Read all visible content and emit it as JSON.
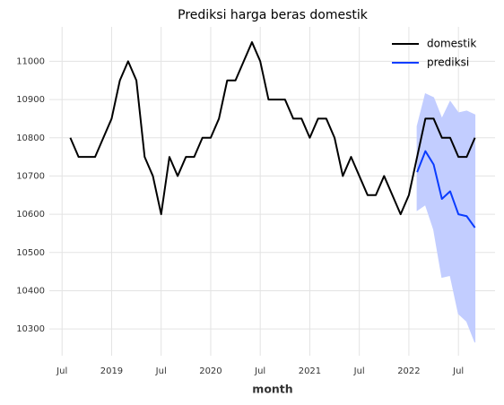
{
  "chart_data": {
    "type": "line",
    "title": "Prediksi harga beras domestik",
    "xlabel": "month",
    "x": [
      "2018-08",
      "2018-09",
      "2018-10",
      "2018-11",
      "2018-12",
      "2019-01",
      "2019-02",
      "2019-03",
      "2019-04",
      "2019-05",
      "2019-06",
      "2019-07",
      "2019-08",
      "2019-09",
      "2019-10",
      "2019-11",
      "2019-12",
      "2020-01",
      "2020-02",
      "2020-03",
      "2020-04",
      "2020-05",
      "2020-06",
      "2020-07",
      "2020-08",
      "2020-09",
      "2020-10",
      "2020-11",
      "2020-12",
      "2021-01",
      "2021-02",
      "2021-03",
      "2021-04",
      "2021-05",
      "2021-06",
      "2021-07",
      "2021-08",
      "2021-09",
      "2021-10",
      "2021-11",
      "2021-12",
      "2022-01",
      "2022-02",
      "2022-03",
      "2022-04",
      "2022-05",
      "2022-06",
      "2022-07",
      "2022-08",
      "2022-09"
    ],
    "series": [
      {
        "name": "domestik",
        "color": "#000000",
        "values": [
          10800,
          10750,
          10750,
          10750,
          10800,
          10850,
          10950,
          11000,
          10950,
          10750,
          10700,
          10600,
          10750,
          10700,
          10750,
          10750,
          10800,
          10800,
          10850,
          10950,
          10950,
          11000,
          11050,
          11000,
          10900,
          10900,
          10900,
          10850,
          10850,
          10800,
          10850,
          10850,
          10800,
          10700,
          10750,
          10700,
          10650,
          10650,
          10700,
          10650,
          10600,
          10650,
          10750,
          10850,
          10850,
          10800,
          10800,
          10750,
          10750,
          10800
        ]
      },
      {
        "name": "prediksi",
        "color": "#0a3cff",
        "band_color": "#c2cdff",
        "values": [
          null,
          null,
          null,
          null,
          null,
          null,
          null,
          null,
          null,
          null,
          null,
          null,
          null,
          null,
          null,
          null,
          null,
          null,
          null,
          null,
          null,
          null,
          null,
          null,
          null,
          null,
          null,
          null,
          null,
          null,
          null,
          null,
          null,
          null,
          null,
          null,
          null,
          null,
          null,
          null,
          null,
          null,
          10710,
          10765,
          10730,
          10640,
          10660,
          10600,
          10595,
          10565
        ],
        "lower": [
          null,
          null,
          null,
          null,
          null,
          null,
          null,
          null,
          null,
          null,
          null,
          null,
          null,
          null,
          null,
          null,
          null,
          null,
          null,
          null,
          null,
          null,
          null,
          null,
          null,
          null,
          null,
          null,
          null,
          null,
          null,
          null,
          null,
          null,
          null,
          null,
          null,
          null,
          null,
          null,
          null,
          null,
          10610,
          10625,
          10560,
          10435,
          10440,
          10340,
          10320,
          10265
        ],
        "upper": [
          null,
          null,
          null,
          null,
          null,
          null,
          null,
          null,
          null,
          null,
          null,
          null,
          null,
          null,
          null,
          null,
          null,
          null,
          null,
          null,
          null,
          null,
          null,
          null,
          null,
          null,
          null,
          null,
          null,
          null,
          null,
          null,
          null,
          null,
          null,
          null,
          null,
          null,
          null,
          null,
          null,
          null,
          10830,
          10915,
          10905,
          10850,
          10895,
          10865,
          10870,
          10860
        ]
      }
    ],
    "xlim": [
      "2018-06",
      "2022-11"
    ],
    "xticks": [
      {
        "value": "2018-07",
        "label": "Jul"
      },
      {
        "value": "2019-01",
        "label": "2019"
      },
      {
        "value": "2019-07",
        "label": "Jul"
      },
      {
        "value": "2020-01",
        "label": "2020"
      },
      {
        "value": "2020-07",
        "label": "Jul"
      },
      {
        "value": "2021-01",
        "label": "2021"
      },
      {
        "value": "2021-07",
        "label": "Jul"
      },
      {
        "value": "2022-01",
        "label": "2022"
      },
      {
        "value": "2022-07",
        "label": "Jul"
      }
    ],
    "ylim": [
      10230,
      11090
    ],
    "yticks": [
      10300,
      10400,
      10500,
      10600,
      10700,
      10800,
      10900,
      11000
    ],
    "grid": true,
    "legend": "upper right"
  }
}
